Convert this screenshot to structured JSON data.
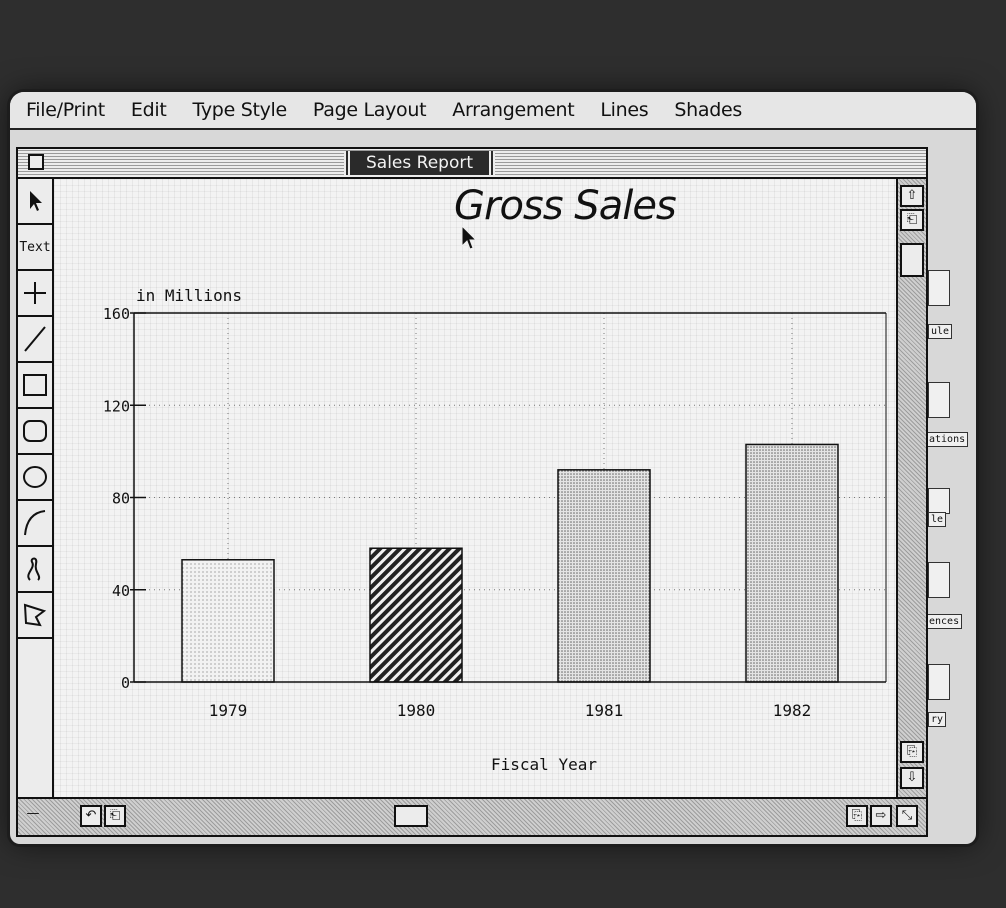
{
  "menu": {
    "items": [
      "File/Print",
      "Edit",
      "Type Style",
      "Page Layout",
      "Arrangement",
      "Lines",
      "Shades"
    ]
  },
  "window": {
    "title": "Sales Report"
  },
  "toolbox": {
    "text_tool_label": "Text",
    "tools": [
      "pointer-icon",
      "text-tool",
      "crosshair-icon",
      "line-icon",
      "rectangle-icon",
      "rounded-rectangle-icon",
      "oval-icon",
      "arc-icon",
      "freehand-icon",
      "polygon-icon"
    ]
  },
  "desktop_icons": {
    "labels": [
      "ule",
      "ations",
      "le",
      "ences",
      "ry"
    ]
  },
  "chart_data": {
    "type": "bar",
    "title": "Gross Sales",
    "ylabel": "in Millions",
    "xlabel": "Fiscal Year",
    "categories": [
      "1979",
      "1980",
      "1981",
      "1982"
    ],
    "values": [
      53,
      58,
      92,
      103
    ],
    "ylim": [
      0,
      160
    ],
    "yticks": [
      "0",
      "40",
      "80",
      "120",
      "160"
    ],
    "ytick_values": [
      0,
      40,
      80,
      120,
      160
    ],
    "grid": true,
    "fills": [
      "light-dots",
      "diagonal-hatch",
      "medium-dots",
      "medium-dots"
    ]
  }
}
